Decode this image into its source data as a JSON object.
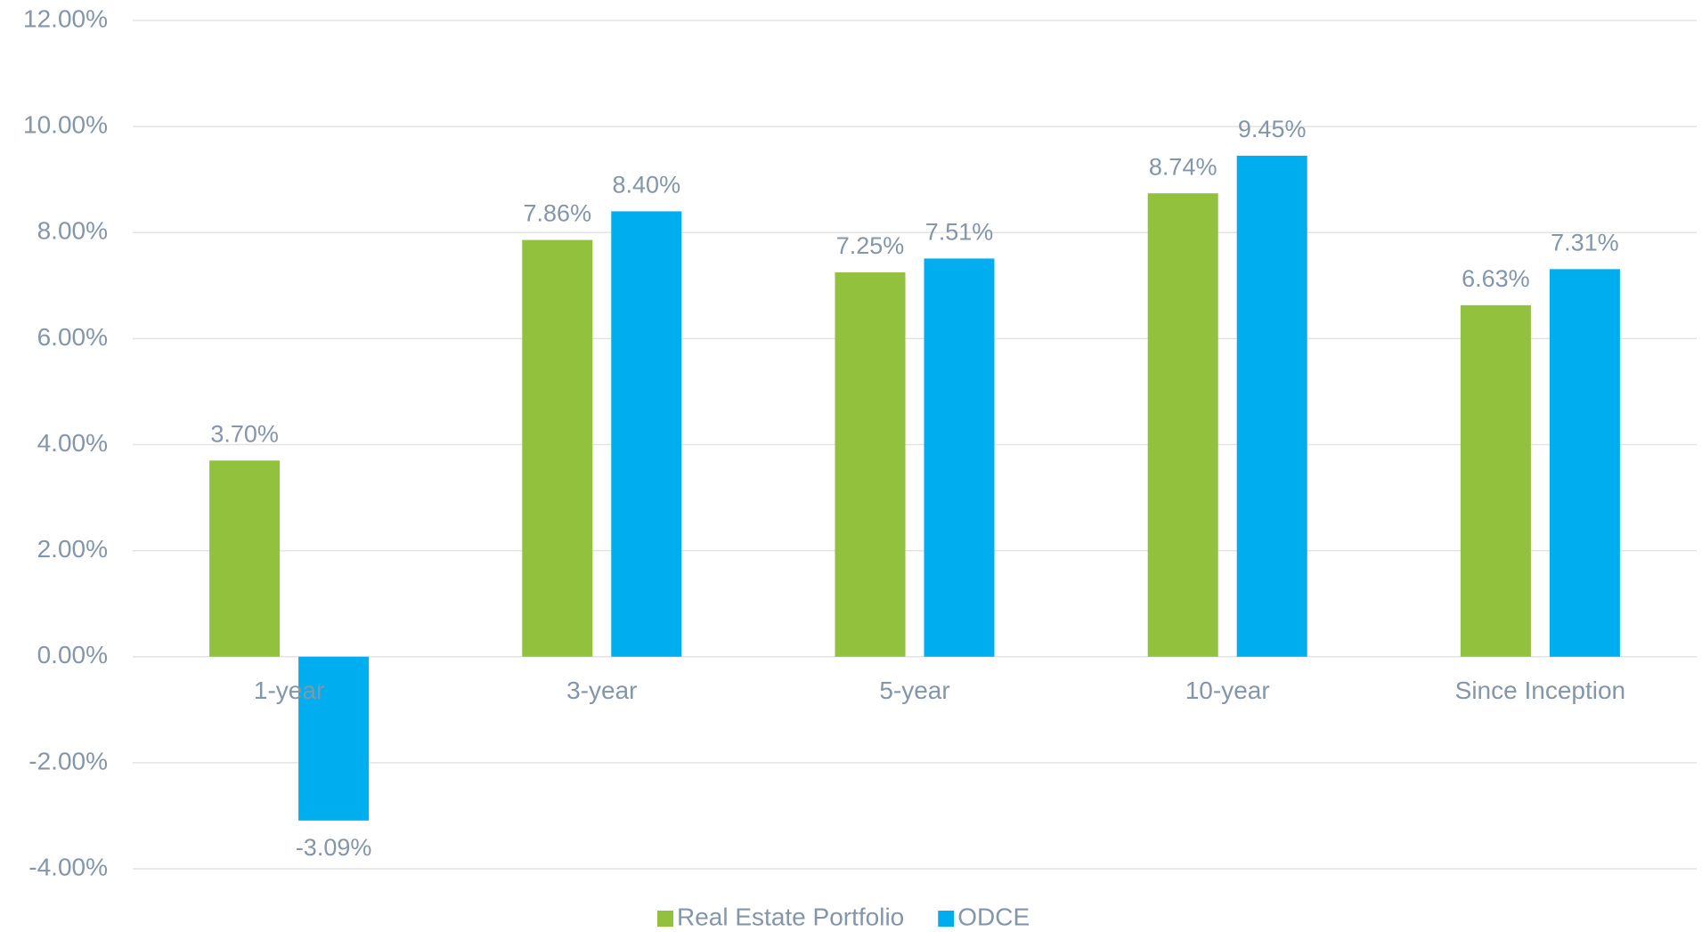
{
  "chart_data": {
    "type": "bar",
    "categories": [
      "1-year",
      "3-year",
      "5-year",
      "10-year",
      "Since Inception"
    ],
    "series": [
      {
        "name": "Real Estate Portfolio",
        "color": "#92c13e",
        "values": [
          3.7,
          7.86,
          7.25,
          8.74,
          6.63
        ],
        "value_labels": [
          "3.70%",
          "7.86%",
          "7.25%",
          "8.74%",
          "6.63%"
        ]
      },
      {
        "name": "ODCE",
        "color": "#00adef",
        "values": [
          -3.09,
          8.4,
          7.51,
          9.45,
          7.31
        ],
        "value_labels": [
          "-3.09%",
          "8.40%",
          "7.51%",
          "9.45%",
          "7.31%"
        ]
      }
    ],
    "ylim": [
      -4,
      12
    ],
    "yticks": [
      {
        "value": -4,
        "label": "-4.00%"
      },
      {
        "value": -2,
        "label": "-2.00%"
      },
      {
        "value": 0,
        "label": "0.00%"
      },
      {
        "value": 2,
        "label": "2.00%"
      },
      {
        "value": 4,
        "label": "4.00%"
      },
      {
        "value": 6,
        "label": "6.00%"
      },
      {
        "value": 8,
        "label": "8.00%"
      },
      {
        "value": 10,
        "label": "10.00%"
      },
      {
        "value": 12,
        "label": "12.00%"
      }
    ],
    "grid": true,
    "legend": "bottom"
  }
}
